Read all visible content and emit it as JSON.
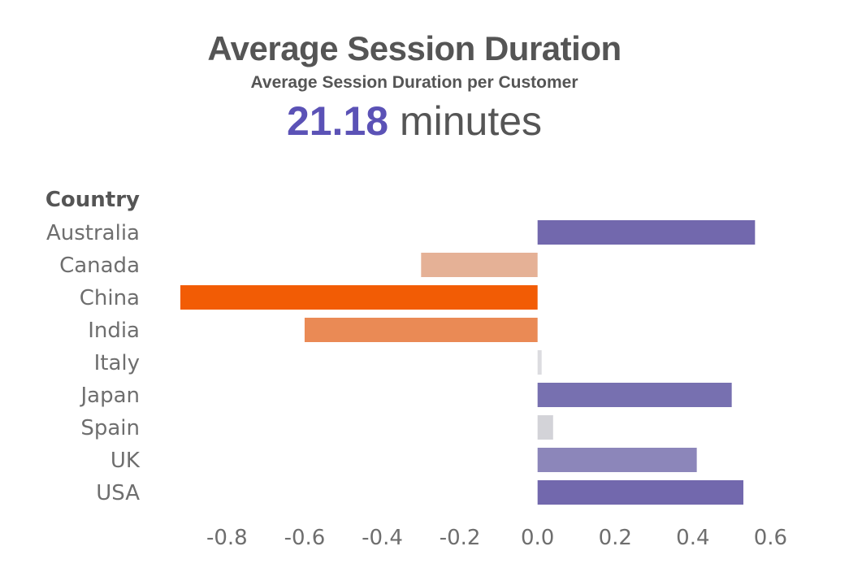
{
  "header": {
    "title": "Average Session Duration",
    "subtitle": "Average Session Duration per Customer",
    "kpi_value": "21.18",
    "kpi_unit": "minutes"
  },
  "colors": {
    "kpi": "#5b52b6",
    "positive": "#7268ad",
    "negative_strong": "#f25c05",
    "negative_mid": "#ea8a55",
    "negative_light": "#e5b196",
    "neutral": "#d7d7dc"
  },
  "chart_data": {
    "type": "bar",
    "orientation": "horizontal",
    "dimension_label": "Country",
    "categories": [
      "Australia",
      "Canada",
      "China",
      "India",
      "Italy",
      "Japan",
      "Spain",
      "UK",
      "USA"
    ],
    "values": [
      0.56,
      -0.3,
      -0.92,
      -0.6,
      0.01,
      0.5,
      0.04,
      0.41,
      0.53
    ],
    "bar_colors": [
      "#7268ad",
      "#e5b196",
      "#f25c05",
      "#ea8a55",
      "#dcdce0",
      "#7770b0",
      "#d3d3d8",
      "#8c86ba",
      "#7268ad"
    ],
    "xlim": [
      -0.92,
      0.62
    ],
    "xticks": [
      -0.8,
      -0.6,
      -0.4,
      -0.2,
      0.0,
      0.2,
      0.4,
      0.6
    ],
    "xtick_labels": [
      "-0.8",
      "-0.6",
      "-0.4",
      "-0.2",
      "0.0",
      "0.2",
      "0.4",
      "0.6"
    ],
    "grid": false,
    "legend": "none"
  }
}
